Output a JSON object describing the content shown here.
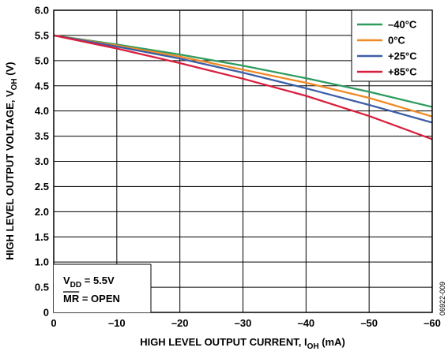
{
  "chart_data": {
    "type": "line",
    "xlabel": {
      "main": "HIGH LEVEL OUTPUT CURRENT, I",
      "sub": "OH",
      "unit": " (mA)"
    },
    "ylabel": {
      "main": "HIGH LEVEL OUTPUT VOLTAGE, V",
      "sub": "OH",
      "unit": " (V)"
    },
    "xlim": [
      0,
      -60
    ],
    "ylim": [
      0,
      6.0
    ],
    "x_ticks": [
      0,
      -10,
      -20,
      -30,
      -40,
      -50,
      -60
    ],
    "x_tick_labels": [
      "0",
      "–10",
      "–20",
      "–30",
      "–40",
      "–50",
      "–60"
    ],
    "y_ticks": [
      0,
      0.5,
      1.0,
      1.5,
      2.0,
      2.5,
      3.0,
      3.5,
      4.0,
      4.5,
      5.0,
      5.5,
      6.0
    ],
    "y_tick_labels": [
      "0",
      "0.5",
      "1.0",
      "1.5",
      "2.0",
      "2.5",
      "3.0",
      "3.5",
      "4.0",
      "4.5",
      "5.0",
      "5.5",
      "6.0"
    ],
    "grid": true,
    "legend_position": "top-right",
    "series": [
      {
        "name": "–40°C",
        "color": "#2e9b5f",
        "x": [
          0,
          -10,
          -20,
          -30,
          -40,
          -50,
          -60
        ],
        "y": [
          5.5,
          5.32,
          5.12,
          4.9,
          4.65,
          4.38,
          4.08
        ]
      },
      {
        "name": "0°C",
        "color": "#f08a24",
        "x": [
          0,
          -10,
          -20,
          -30,
          -40,
          -50,
          -60
        ],
        "y": [
          5.5,
          5.3,
          5.08,
          4.82,
          4.56,
          4.26,
          3.89
        ]
      },
      {
        "name": "+25°C",
        "color": "#3d5ea8",
        "x": [
          0,
          -10,
          -20,
          -30,
          -40,
          -50,
          -60
        ],
        "y": [
          5.5,
          5.28,
          5.04,
          4.76,
          4.45,
          4.12,
          3.77
        ]
      },
      {
        "name": "+85°C",
        "color": "#d91f3d",
        "x": [
          0,
          -10,
          -20,
          -30,
          -40,
          -50,
          -60
        ],
        "y": [
          5.5,
          5.24,
          4.95,
          4.64,
          4.3,
          3.9,
          3.44
        ]
      }
    ],
    "annotation": {
      "line1_main": "V",
      "line1_sub": "DD",
      "line1_rest": " = 5.5V",
      "line2_overbar": "MR",
      "line2_rest": " = OPEN"
    },
    "figure_id": "06922-009"
  }
}
